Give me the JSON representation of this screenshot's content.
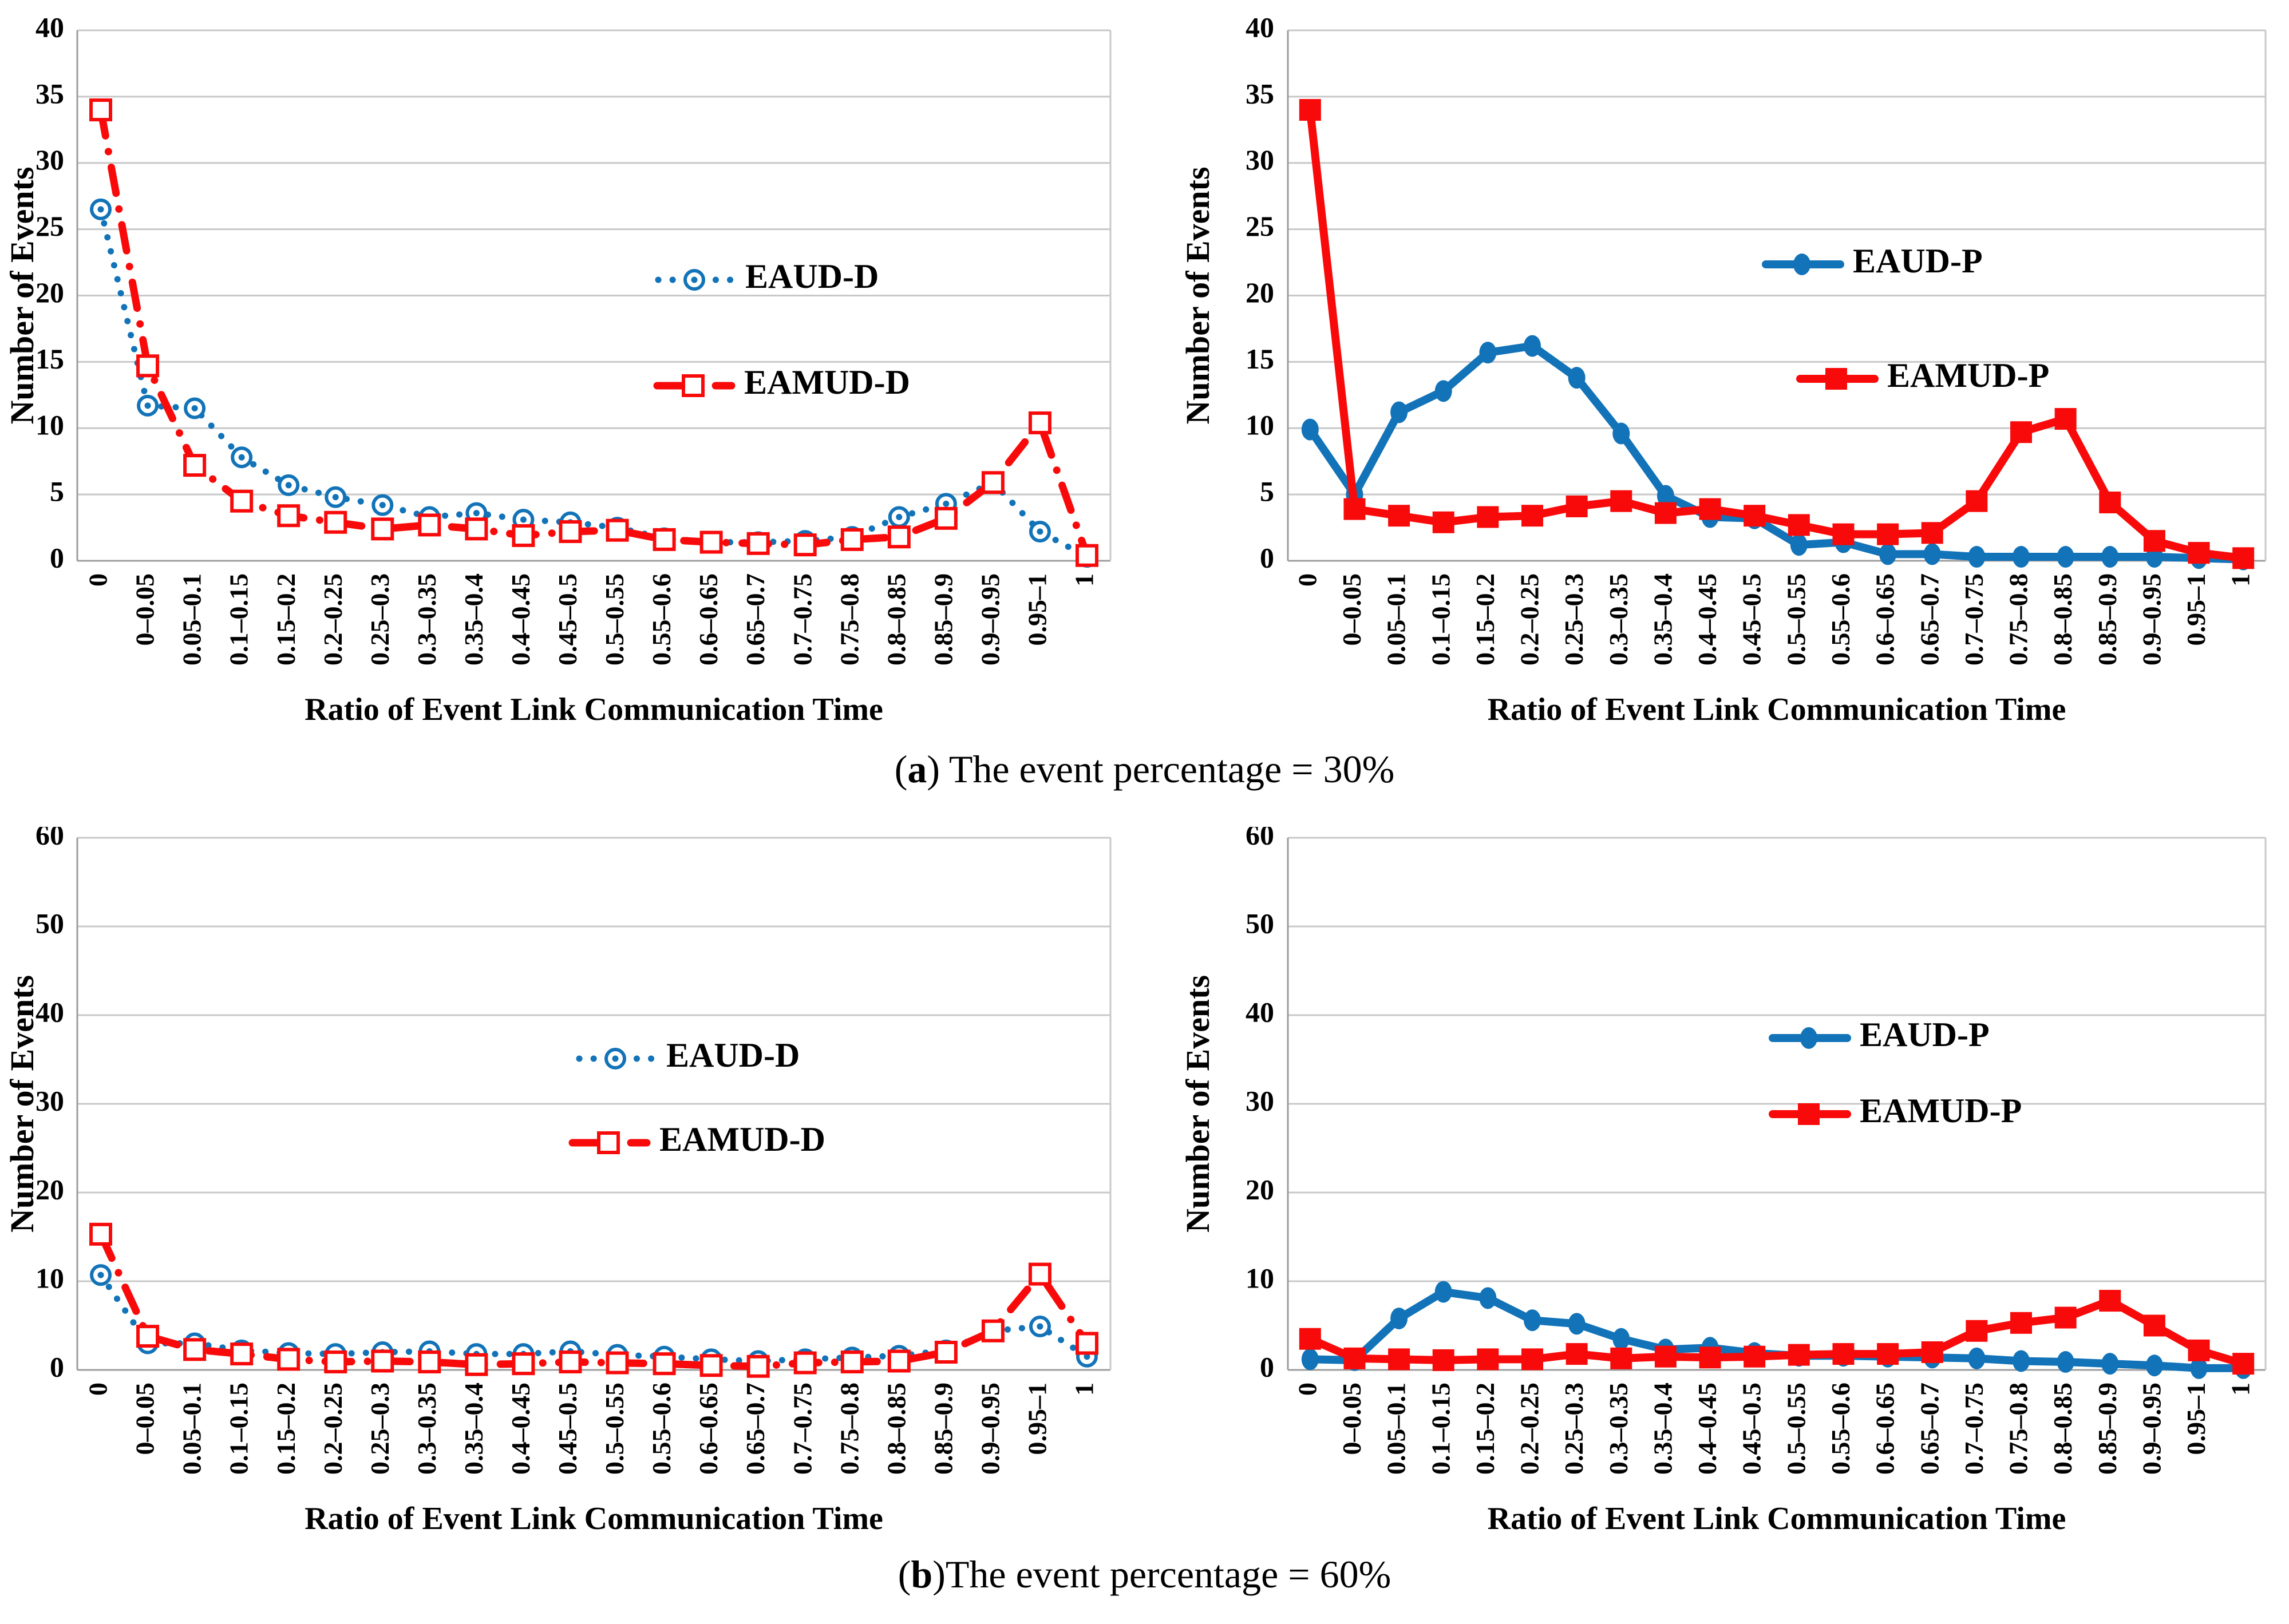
{
  "figure": {
    "caption_a": {
      "open": "(",
      "letter": "a",
      "rest": ") The event percentage = 30%"
    },
    "caption_b": {
      "open": "(",
      "letter": "b",
      "rest": ")The event percentage = 60%"
    }
  },
  "colors": {
    "blue": "#1273B8",
    "red": "#F80A0A",
    "grid": "#C8C8C8",
    "axis": "#9C9C9C",
    "text": "#000000"
  },
  "chart_data": [
    {
      "id": "event-30-distance",
      "type": "line",
      "title": "",
      "xlabel": "Ratio of Event Link Communication Time",
      "ylabel": "Number of Events",
      "ylim": [
        0,
        40
      ],
      "ytick_step": 5,
      "grid": true,
      "legend_position": "inside-center-right",
      "categories": [
        "0",
        "0–0.05",
        "0.05–0.1",
        "0.1–0.15",
        "0.15–0.2",
        "0.2–0.25",
        "0.25–0.3",
        "0.3–0.35",
        "0.35–0.4",
        "0.4–0.45",
        "0.45–0.5",
        "0.5–0.55",
        "0.55–0.6",
        "0.6–0.65",
        "0.65–0.7",
        "0.7–0.75",
        "0.75–0.8",
        "0.8–0.85",
        "0.85–0.9",
        "0.9–0.95",
        "0.95–1",
        "1"
      ],
      "series": [
        {
          "name": "EAUD-D",
          "color": "#1273B8",
          "line": "dotted",
          "marker": "open-circle",
          "values": [
            26.5,
            11.7,
            11.5,
            7.8,
            5.7,
            4.8,
            4.2,
            3.3,
            3.6,
            3.1,
            2.9,
            2.5,
            1.7,
            1.4,
            1.4,
            1.5,
            1.8,
            3.3,
            4.3,
            5.9,
            2.2,
            0.3
          ]
        },
        {
          "name": "EAMUD-D",
          "color": "#F80A0A",
          "line": "dashdot",
          "marker": "open-square",
          "values": [
            34,
            14.7,
            7.2,
            4.5,
            3.4,
            2.9,
            2.4,
            2.7,
            2.4,
            1.9,
            2.2,
            2.3,
            1.6,
            1.4,
            1.3,
            1.2,
            1.6,
            1.8,
            3.2,
            5.9,
            10.4,
            0.4
          ]
        }
      ]
    },
    {
      "id": "event-30-probability",
      "type": "line",
      "title": "",
      "xlabel": "Ratio of Event Link Communication Time",
      "ylabel": "Number of Events",
      "ylim": [
        0,
        40
      ],
      "ytick_step": 5,
      "grid": true,
      "legend_position": "inside-center-right",
      "categories": [
        "0",
        "0–0.05",
        "0.05–0.1",
        "0.1–0.15",
        "0.15–0.2",
        "0.2–0.25",
        "0.25–0.3",
        "0.3–0.35",
        "0.35–0.4",
        "0.4–0.45",
        "0.45–0.5",
        "0.5–0.55",
        "0.55–0.6",
        "0.6–0.65",
        "0.65–0.7",
        "0.7–0.75",
        "0.75–0.8",
        "0.8–0.85",
        "0.85–0.9",
        "0.9–0.95",
        "0.95–1",
        "1"
      ],
      "series": [
        {
          "name": "EAUD-P",
          "color": "#1273B8",
          "line": "solid",
          "marker": "filled-circle",
          "values": [
            9.9,
            5.0,
            11.2,
            12.8,
            15.7,
            16.2,
            13.8,
            9.6,
            4.9,
            3.3,
            3.2,
            1.2,
            1.4,
            0.5,
            0.5,
            0.3,
            0.3,
            0.3,
            0.3,
            0.3,
            0.2,
            0.1
          ]
        },
        {
          "name": "EAMUD-P",
          "color": "#F80A0A",
          "line": "solid",
          "marker": "filled-square",
          "values": [
            34,
            3.9,
            3.4,
            2.9,
            3.3,
            3.4,
            4.1,
            4.5,
            3.6,
            3.9,
            3.4,
            2.7,
            2.0,
            2.0,
            2.1,
            4.5,
            9.7,
            10.7,
            4.4,
            1.5,
            0.6,
            0.2
          ]
        }
      ]
    },
    {
      "id": "event-60-distance",
      "type": "line",
      "title": "",
      "xlabel": "Ratio of Event Link Communication Time",
      "ylabel": "Number of Events",
      "ylim": [
        0,
        60
      ],
      "ytick_step": 10,
      "grid": true,
      "legend_position": "inside-center-right",
      "categories": [
        "0",
        "0–0.05",
        "0.05–0.1",
        "0.1–0.15",
        "0.15–0.2",
        "0.2–0.25",
        "0.25–0.3",
        "0.3–0.35",
        "0.35–0.4",
        "0.4–0.45",
        "0.45–0.5",
        "0.5–0.55",
        "0.55–0.6",
        "0.6–0.65",
        "0.65–0.7",
        "0.7–0.75",
        "0.75–0.8",
        "0.8–0.85",
        "0.85–0.9",
        "0.9–0.95",
        "0.95–1",
        "1"
      ],
      "series": [
        {
          "name": "EAUD-D",
          "color": "#1273B8",
          "line": "dotted",
          "marker": "open-circle",
          "values": [
            10.7,
            3.0,
            3.0,
            2.2,
            1.9,
            1.8,
            2.0,
            2.1,
            1.8,
            1.8,
            2.1,
            1.7,
            1.5,
            1.2,
            1.0,
            1.2,
            1.4,
            1.6,
            2.2,
            4.4,
            4.9,
            1.5
          ]
        },
        {
          "name": "EAMUD-D",
          "color": "#F80A0A",
          "line": "dashdot",
          "marker": "open-square",
          "values": [
            15.3,
            3.8,
            2.3,
            1.8,
            1.2,
            0.9,
            1.0,
            0.9,
            0.6,
            0.7,
            0.9,
            0.8,
            0.7,
            0.5,
            0.4,
            0.8,
            0.9,
            1.0,
            2.0,
            4.4,
            10.8,
            3.0
          ]
        }
      ]
    },
    {
      "id": "event-60-probability",
      "type": "line",
      "title": "",
      "xlabel": "Ratio of Event Link Communication Time",
      "ylabel": "Number of Events",
      "ylim": [
        0,
        60
      ],
      "ytick_step": 10,
      "grid": true,
      "legend_position": "inside-center-right",
      "categories": [
        "0",
        "0–0.05",
        "0.05–0.1",
        "0.1–0.15",
        "0.15–0.2",
        "0.2–0.25",
        "0.25–0.3",
        "0.3–0.35",
        "0.35–0.4",
        "0.4–0.45",
        "0.45–0.5",
        "0.5–0.55",
        "0.55–0.6",
        "0.6–0.65",
        "0.65–0.7",
        "0.7–0.75",
        "0.75–0.8",
        "0.8–0.85",
        "0.85–0.9",
        "0.9–0.95",
        "0.95–1",
        "1"
      ],
      "series": [
        {
          "name": "EAUD-P",
          "color": "#1273B8",
          "line": "solid",
          "marker": "filled-circle",
          "values": [
            1.2,
            1.1,
            5.8,
            8.8,
            8.1,
            5.6,
            5.2,
            3.5,
            2.3,
            2.5,
            1.9,
            1.6,
            1.6,
            1.5,
            1.4,
            1.3,
            1.0,
            0.9,
            0.7,
            0.5,
            0.2,
            0.2
          ]
        },
        {
          "name": "EAMUD-P",
          "color": "#F80A0A",
          "line": "solid",
          "marker": "filled-square",
          "values": [
            3.5,
            1.3,
            1.2,
            1.1,
            1.2,
            1.2,
            1.8,
            1.3,
            1.5,
            1.4,
            1.5,
            1.7,
            1.8,
            1.8,
            2.0,
            4.4,
            5.3,
            5.9,
            7.8,
            5.0,
            2.2,
            0.7
          ]
        }
      ]
    }
  ]
}
